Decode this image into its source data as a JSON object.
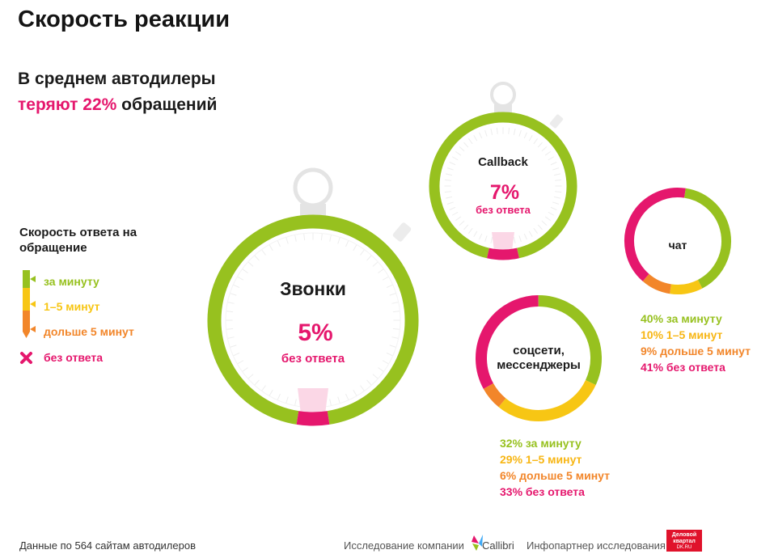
{
  "title": "Скорость реакции",
  "subtitle_line1": "В среднем автодилеры",
  "subtitle_highlight": "теряют 22%",
  "subtitle_rest": " обращений",
  "legend": {
    "title": "Скорость ответа на обращение",
    "items": [
      {
        "label": "за минуту",
        "color": "#97c11f"
      },
      {
        "label": "1–5 минут",
        "color": "#f7c614"
      },
      {
        "label": "дольше 5 минут",
        "color": "#f2862a"
      },
      {
        "label": "без ответа",
        "color": "#e5176d"
      }
    ]
  },
  "colors": {
    "green": "#97c11f",
    "yellow": "#f7c614",
    "orange": "#f2862a",
    "pink": "#e5176d",
    "pink_light": "#fbd7e6",
    "stopwatch": "#e4e4e4"
  },
  "chart_data": [
    {
      "type": "pie",
      "name": "Звонки",
      "value_label": "5%",
      "value_caption": "без ответа",
      "slices": [
        {
          "label": "без ответа",
          "value": 5
        }
      ]
    },
    {
      "type": "pie",
      "name": "Callback",
      "value_label": "7%",
      "value_caption": "без ответа",
      "slices": [
        {
          "label": "без ответа",
          "value": 7
        }
      ]
    },
    {
      "type": "pie",
      "name": "чат",
      "slices": [
        {
          "label": "за минуту",
          "value": 40,
          "text": "40% за минуту"
        },
        {
          "label": "1–5 минут",
          "value": 10,
          "text": "10% 1–5 минут"
        },
        {
          "label": "дольше 5 минут",
          "value": 9,
          "text": "9% дольше 5 минут"
        },
        {
          "label": "без ответа",
          "value": 41,
          "text": "41% без ответа"
        }
      ]
    },
    {
      "type": "pie",
      "name_line1": "соцсети,",
      "name_line2": "мессенджеры",
      "slices": [
        {
          "label": "за минуту",
          "value": 32,
          "text": "32% за минуту"
        },
        {
          "label": "1–5 минут",
          "value": 29,
          "text": "29% 1–5 минут"
        },
        {
          "label": "дольше 5 минут",
          "value": 6,
          "text": "6% дольше 5 минут"
        },
        {
          "label": "без ответа",
          "value": 33,
          "text": "33% без ответа"
        }
      ]
    }
  ],
  "footer": {
    "source": "Данные по 564 сайтам автодилеров",
    "research": "Исследование компании",
    "callibri": "Callibri",
    "partner": "Инфопартнер исследования",
    "dk_logo": "Деловой квартал",
    "dk_sub": "DK.RU"
  }
}
